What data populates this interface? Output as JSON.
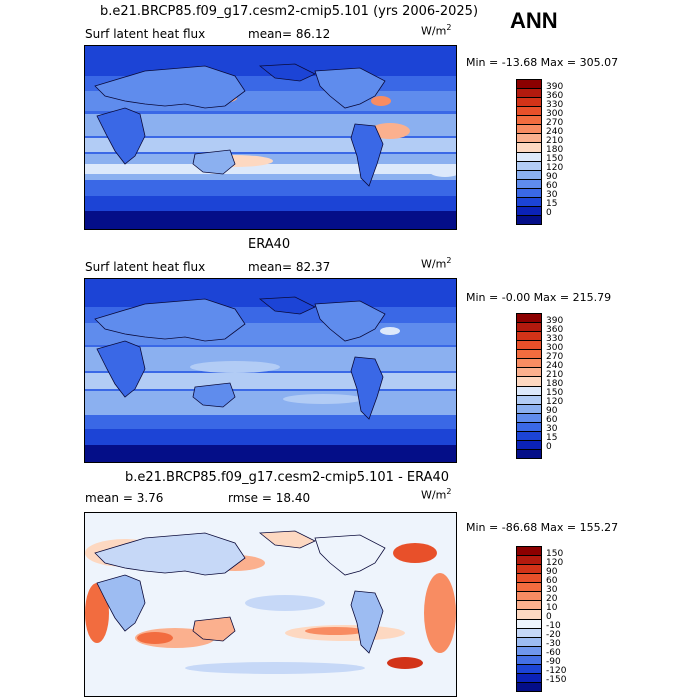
{
  "season": "ANN",
  "panels": [
    {
      "title": "b.e21.BRCP85.f09_g17.cesm2-cmip5.101 (yrs 2006-2025)",
      "variable": "Surf latent heat flux",
      "stat": "mean=  86.12",
      "units_base": "W/m",
      "units_exp": "2",
      "minmax": "Min = -13.68 Max = 305.07",
      "colorbar_labels": [
        "390",
        "360",
        "330",
        "300",
        "270",
        "240",
        "210",
        "180",
        "150",
        "120",
        "90",
        "60",
        "30",
        "15",
        "0"
      ],
      "colorbar_colors": [
        "#8b0000",
        "#b21a0e",
        "#d23318",
        "#e8502a",
        "#f26c3f",
        "#f88c62",
        "#fbb08e",
        "#fdd8c1",
        "#dde9fb",
        "#b2ccf5",
        "#8bb0f0",
        "#5f8ced",
        "#3a68e6",
        "#1c44d6",
        "#0b22b8",
        "#040e88"
      ]
    },
    {
      "title": "ERA40",
      "variable": "Surf latent heat flux",
      "stat": "mean=  82.37",
      "units_base": "W/m",
      "units_exp": "2",
      "minmax": "Min = -0.00 Max = 215.79",
      "colorbar_labels": [
        "390",
        "360",
        "330",
        "300",
        "270",
        "240",
        "210",
        "180",
        "150",
        "120",
        "90",
        "60",
        "30",
        "15",
        "0"
      ],
      "colorbar_colors": [
        "#8b0000",
        "#b21a0e",
        "#d23318",
        "#e8502a",
        "#f26c3f",
        "#f88c62",
        "#fbb08e",
        "#fdd8c1",
        "#dde9fb",
        "#b2ccf5",
        "#8bb0f0",
        "#5f8ced",
        "#3a68e6",
        "#1c44d6",
        "#0b22b8",
        "#040e88"
      ]
    },
    {
      "title": "b.e21.BRCP85.f09_g17.cesm2-cmip5.101 - ERA40",
      "stat": "mean =   3.76",
      "stat2": "rmse =  18.40",
      "units_base": "W/m",
      "units_exp": "2",
      "minmax": "Min = -86.68 Max = 155.27",
      "colorbar_labels": [
        "150",
        "120",
        "90",
        "60",
        "30",
        "20",
        "10",
        "0",
        "-10",
        "-20",
        "-30",
        "-60",
        "-90",
        "-120",
        "-150"
      ],
      "colorbar_colors": [
        "#8b0000",
        "#b21a0e",
        "#d23318",
        "#e8502a",
        "#f26c3f",
        "#f88c62",
        "#fbb08e",
        "#fdd8c1",
        "#eef4fc",
        "#c6d8f7",
        "#9dbcf2",
        "#6f97ee",
        "#4470e6",
        "#1c44d6",
        "#0b22b8",
        "#040e88"
      ]
    }
  ]
}
